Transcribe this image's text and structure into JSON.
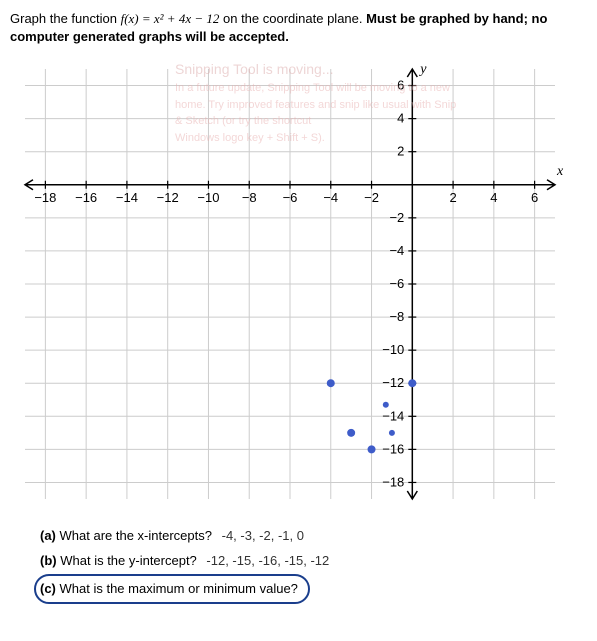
{
  "question": {
    "prefix": "Graph the function ",
    "function": "f(x) = x² + 4x − 12",
    "middle": " on the coordinate plane. ",
    "bold_instruction": "Must be graphed by hand; no computer generated graphs will be accepted."
  },
  "overlay": {
    "title": "Snipping Tool is moving...",
    "line1": "In a future update, Snipping Tool will be moving to a new",
    "line2": "home. Try improved features and snip like usual with Snip",
    "line3": "& Sketch (or try the shortcut",
    "line4": "Windows logo key + Shift + S)."
  },
  "graph": {
    "type": "scatter",
    "x_axis_label": "x",
    "y_axis_label": "y",
    "xlim": [
      -19,
      7
    ],
    "ylim": [
      -19,
      7
    ],
    "x_ticks": [
      -18,
      -16,
      -14,
      -12,
      -10,
      -8,
      -6,
      -4,
      -2,
      2,
      4,
      6
    ],
    "y_ticks": [
      -18,
      -16,
      -14,
      -12,
      -10,
      -8,
      -6,
      -4,
      -2,
      2,
      4,
      6
    ],
    "grid_color": "#cccccc",
    "axis_color": "#000000",
    "background_color": "#ffffff",
    "tick_label_fontsize": 13,
    "tick_label_color": "#000000",
    "axis_label_fontsize": 14,
    "axis_label_font_style": "italic",
    "points": [
      {
        "x": -4,
        "y": -12,
        "color": "#3e5cc9",
        "radius": 4
      },
      {
        "x": -3,
        "y": -15,
        "color": "#3e5cc9",
        "radius": 4
      },
      {
        "x": -2,
        "y": -16,
        "color": "#3e5cc9",
        "radius": 4
      },
      {
        "x": -1,
        "y": -15,
        "color": "#3e5cc9",
        "radius": 3
      },
      {
        "x": -1.3,
        "y": -13.3,
        "color": "#3e5cc9",
        "radius": 3
      },
      {
        "x": 0,
        "y": -12,
        "color": "#3e5cc9",
        "radius": 4
      }
    ]
  },
  "parts": {
    "a": {
      "label": "(a)",
      "question": "What are the x-intercepts?",
      "answer": "-4, -3, -2, -1, 0"
    },
    "b": {
      "label": "(b)",
      "question": "What is the y-intercept?",
      "answer": "-12, -15, -16, -15, -12"
    },
    "c": {
      "label": "(c)",
      "question": "What is the maximum or minimum value?",
      "circled": true,
      "circle_color": "#1a3e8c"
    }
  }
}
